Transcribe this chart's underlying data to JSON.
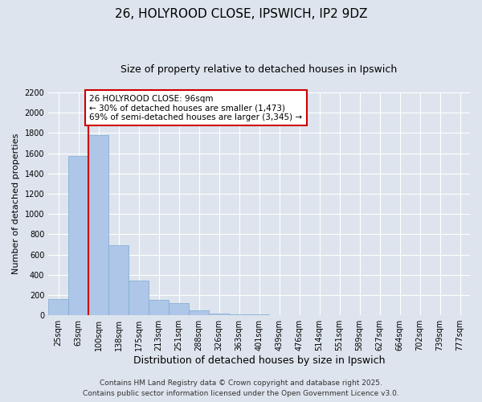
{
  "title": "26, HOLYROOD CLOSE, IPSWICH, IP2 9DZ",
  "subtitle": "Size of property relative to detached houses in Ipswich",
  "xlabel": "Distribution of detached houses by size in Ipswich",
  "ylabel": "Number of detached properties",
  "categories": [
    "25sqm",
    "63sqm",
    "100sqm",
    "138sqm",
    "175sqm",
    "213sqm",
    "251sqm",
    "288sqm",
    "326sqm",
    "363sqm",
    "401sqm",
    "439sqm",
    "476sqm",
    "514sqm",
    "551sqm",
    "589sqm",
    "627sqm",
    "664sqm",
    "702sqm",
    "739sqm",
    "777sqm"
  ],
  "values": [
    160,
    1570,
    1780,
    690,
    340,
    155,
    120,
    50,
    20,
    12,
    5,
    2,
    1,
    0,
    0,
    0,
    0,
    0,
    0,
    0,
    0
  ],
  "bar_color": "#aec6e8",
  "bar_edge_color": "#7aaad0",
  "vline_color": "#cc0000",
  "annotation_text": "26 HOLYROOD CLOSE: 96sqm\n← 30% of detached houses are smaller (1,473)\n69% of semi-detached houses are larger (3,345) →",
  "annotation_box_edgecolor": "#cc0000",
  "annotation_box_facecolor": "white",
  "ylim": [
    0,
    2200
  ],
  "yticks": [
    0,
    200,
    400,
    600,
    800,
    1000,
    1200,
    1400,
    1600,
    1800,
    2000,
    2200
  ],
  "footer_line1": "Contains HM Land Registry data © Crown copyright and database right 2025.",
  "footer_line2": "Contains public sector information licensed under the Open Government Licence v3.0.",
  "background_color": "#dde4ed",
  "plot_bg_color": "#dde4ed",
  "title_fontsize": 11,
  "subtitle_fontsize": 9,
  "axis_label_fontsize": 8,
  "tick_fontsize": 7,
  "annotation_fontsize": 7.5,
  "footer_fontsize": 6.5
}
